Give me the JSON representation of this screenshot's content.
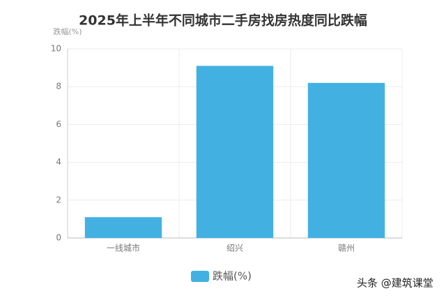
{
  "chart_data": {
    "type": "bar",
    "title": "2025年上半年不同城市二手房找房热度同比跌幅",
    "y_label": "跌幅(%)",
    "categories": [
      "一线城市",
      "绍兴",
      "赣州"
    ],
    "series": [
      {
        "name": "跌幅(%)",
        "color": "#42b1e1",
        "values": [
          1.1,
          9.1,
          8.2
        ]
      }
    ],
    "ylim": [
      0,
      10
    ],
    "yticks": [
      0,
      2,
      4,
      6,
      8,
      10
    ],
    "grid": true,
    "legend": "bottom",
    "annotation": "头条 @建筑课堂"
  }
}
